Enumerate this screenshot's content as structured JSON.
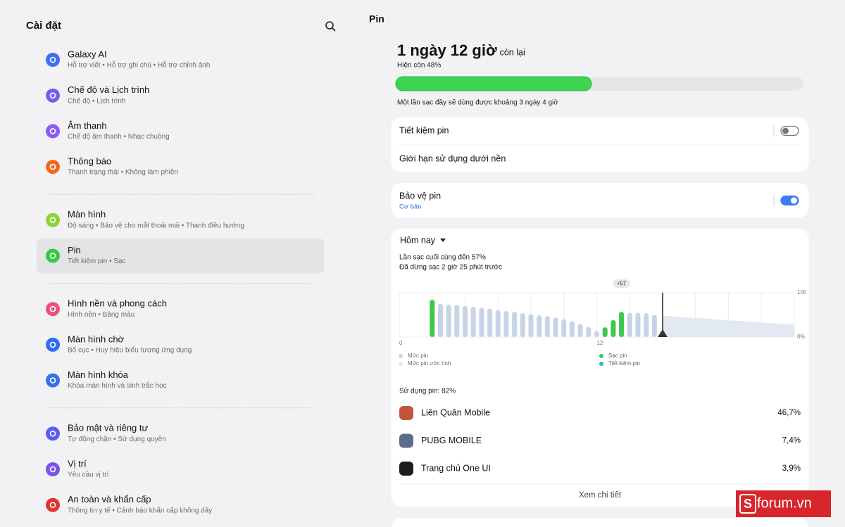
{
  "left": {
    "title": "Cài đặt",
    "groups": [
      [
        {
          "title": "Galaxy AI",
          "subtitle": "Hỗ trợ viết • Hỗ trợ ghi chú • Hỗ trợ chỉnh ảnh",
          "color": "#3f6ff2"
        },
        {
          "title": "Chế độ và Lịch trình",
          "subtitle": "Chế độ • Lịch trình",
          "color": "#7b5cf3"
        },
        {
          "title": "Âm thanh",
          "subtitle": "Chế độ âm thanh • Nhạc chuông",
          "color": "#8a5cf5"
        },
        {
          "title": "Thông báo",
          "subtitle": "Thanh trạng thái • Không làm phiền",
          "color": "#ef6a20"
        }
      ],
      [
        {
          "title": "Màn hình",
          "subtitle": "Độ sáng • Bảo vệ cho mắt thoải mái • Thanh điều hướng",
          "color": "#8fd13a"
        },
        {
          "title": "Pin",
          "subtitle": "Tiết kiệm pin • Sạc",
          "color": "#36c94a",
          "selected": true
        }
      ],
      [
        {
          "title": "Hình nền và phong cách",
          "subtitle": "Hình nền • Bảng màu",
          "color": "#e9527c"
        },
        {
          "title": "Màn hình chờ",
          "subtitle": "Bố cục • Huy hiệu biểu tượng ứng dụng",
          "color": "#2f6ef3"
        },
        {
          "title": "Màn hình khóa",
          "subtitle": "Khóa màn hình và sinh trắc học",
          "color": "#3570e8"
        }
      ],
      [
        {
          "title": "Bảo mật và riêng tư",
          "subtitle": "Tự động chặn • Sử dụng quyền",
          "color": "#5a5ef0"
        },
        {
          "title": "Vị trí",
          "subtitle": "Yêu cầu vị trí",
          "color": "#7a54e8"
        },
        {
          "title": "An toàn và khẩn cấp",
          "subtitle": "Thông tin y tế • Cảnh báo khẩn cấp không dây",
          "color": "#e0342e"
        }
      ]
    ]
  },
  "right": {
    "title": "Pin",
    "remaining": "1 ngày 12 giờ",
    "remaining_suffix": "còn lại",
    "current": "Hiện còn 48%",
    "level": 48,
    "full_charge": "Một lần sạc đầy sẽ dùng được khoảng 3 ngày 4 giờ",
    "card1": [
      {
        "label": "Tiết kiệm pin",
        "on": false
      },
      {
        "label": "Giới hạn sử dụng dưới nền"
      }
    ],
    "card2": {
      "label": "Bảo vệ pin",
      "sub": "Cơ bản",
      "on": true
    },
    "period": "Hôm nay",
    "last_charge": "Lần sạc cuối cùng đến 57%",
    "stopped": "Đã dừng sạc 2 giờ 25 phút trước",
    "usage_title": "Sử dụng pin: 82%",
    "apps": [
      {
        "name": "Liên Quân Mobile",
        "percent": "46,7%"
      },
      {
        "name": "PUBG MOBILE",
        "percent": "7,4%"
      },
      {
        "name": "Trang chủ One UI",
        "percent": "3,9%"
      }
    ],
    "details": "Xem chi tiết",
    "watermark": "forum.vn"
  },
  "chart_data": {
    "type": "bar",
    "badge": 57,
    "xlim": [
      0,
      24
    ],
    "xticks": [
      0,
      12
    ],
    "xgrid": [
      0,
      2,
      4,
      6,
      8,
      10,
      12,
      14,
      16,
      18,
      20,
      22,
      24
    ],
    "ylim": [
      0,
      100
    ],
    "yticks": [
      100,
      {
        "value": 0,
        "label": "0%"
      }
    ],
    "now": 16,
    "series": [
      {
        "name": "Mức pin",
        "color": "#c7d4e6",
        "x": [
          2.5,
          3,
          3.5,
          4,
          4.5,
          5,
          5.5,
          6,
          6.5,
          7,
          7.5,
          8,
          8.5,
          9,
          9.5,
          10,
          10.5,
          11,
          11.5,
          12,
          14,
          14.5,
          15,
          15.5
        ],
        "values": [
          75,
          73,
          72,
          70,
          68,
          66,
          64,
          61,
          59,
          57,
          54,
          52,
          49,
          47,
          44,
          40,
          36,
          30,
          23,
          13,
          55,
          55,
          54,
          50
        ]
      },
      {
        "name": "Mức pin ước tính",
        "color": "#e3e9f2",
        "x": [
          16,
          24
        ],
        "values": [
          48,
          28
        ]
      },
      {
        "name": "Sạc pin",
        "color": "#3dc84f",
        "x": [
          2,
          12.5,
          13,
          13.5
        ],
        "values": [
          84,
          22,
          38,
          57
        ]
      },
      {
        "name": "Tiết kiệm pin",
        "color": "#19c6b0",
        "x": [],
        "values": []
      }
    ]
  }
}
